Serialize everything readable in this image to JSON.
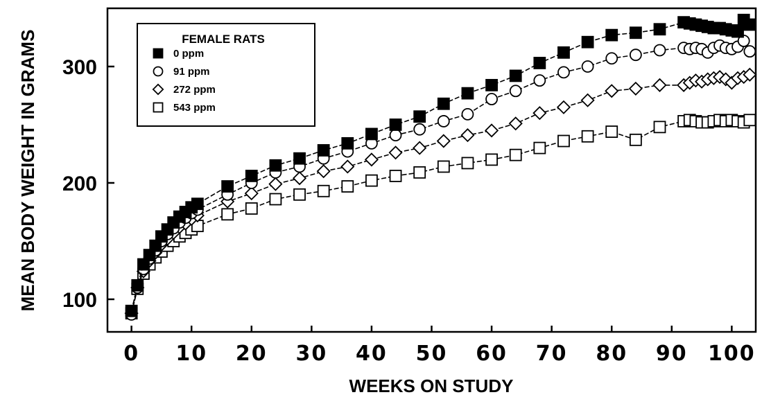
{
  "chart_data": {
    "type": "line",
    "xlabel": "WEEKS ON STUDY",
    "ylabel": "MEAN BODY WEIGHT IN GRAMS",
    "xlim": [
      -4,
      104
    ],
    "ylim": [
      72,
      350
    ],
    "x_ticks": [
      0,
      10,
      20,
      30,
      40,
      50,
      60,
      70,
      80,
      90,
      100
    ],
    "y_ticks": [
      100,
      200,
      300
    ],
    "legend": {
      "title": "FEMALE RATS",
      "position": "top-left"
    },
    "series": [
      {
        "name": "0 ppm",
        "marker": "filled-square",
        "x": [
          0,
          1,
          2,
          3,
          4,
          5,
          6,
          7,
          8,
          9,
          10,
          11,
          16,
          20,
          24,
          28,
          32,
          36,
          40,
          44,
          48,
          52,
          56,
          60,
          64,
          68,
          72,
          76,
          80,
          84,
          88,
          92,
          93,
          94,
          95,
          96,
          97,
          98,
          99,
          100,
          101,
          102,
          103
        ],
        "y": [
          90,
          112,
          130,
          138,
          146,
          154,
          160,
          166,
          171,
          175,
          179,
          182,
          197,
          206,
          215,
          221,
          228,
          234,
          242,
          250,
          257,
          268,
          277,
          284,
          292,
          303,
          312,
          321,
          327,
          329,
          332,
          338,
          337,
          336,
          335,
          334,
          333,
          333,
          332,
          331,
          330,
          340,
          336
        ]
      },
      {
        "name": "91 ppm",
        "marker": "open-circle",
        "x": [
          0,
          1,
          2,
          3,
          4,
          5,
          6,
          7,
          8,
          9,
          10,
          11,
          16,
          20,
          24,
          28,
          32,
          36,
          40,
          44,
          48,
          52,
          56,
          60,
          64,
          68,
          72,
          76,
          80,
          84,
          88,
          92,
          93,
          94,
          95,
          96,
          97,
          98,
          99,
          100,
          101,
          102,
          103
        ],
        "y": [
          87,
          110,
          126,
          135,
          142,
          150,
          156,
          161,
          166,
          170,
          174,
          177,
          190,
          200,
          209,
          214,
          221,
          227,
          234,
          241,
          246,
          253,
          259,
          272,
          279,
          288,
          295,
          300,
          307,
          310,
          314,
          316,
          315,
          316,
          315,
          312,
          316,
          318,
          316,
          315,
          317,
          322,
          313
        ]
      },
      {
        "name": "272 ppm",
        "marker": "open-diamond",
        "x": [
          0,
          1,
          2,
          3,
          4,
          5,
          6,
          7,
          8,
          9,
          10,
          11,
          16,
          20,
          24,
          28,
          32,
          36,
          40,
          44,
          48,
          52,
          56,
          60,
          64,
          68,
          72,
          76,
          80,
          84,
          88,
          92,
          93,
          94,
          95,
          96,
          97,
          98,
          99,
          100,
          101,
          102,
          103
        ],
        "y": [
          88,
          110,
          124,
          133,
          140,
          147,
          152,
          157,
          162,
          165,
          169,
          172,
          184,
          191,
          199,
          204,
          210,
          214,
          220,
          226,
          230,
          236,
          241,
          245,
          251,
          260,
          265,
          271,
          279,
          281,
          284,
          284,
          286,
          288,
          287,
          289,
          290,
          291,
          289,
          286,
          290,
          291,
          293
        ]
      },
      {
        "name": "543 ppm",
        "marker": "open-square",
        "x": [
          0,
          1,
          2,
          3,
          4,
          5,
          6,
          7,
          8,
          9,
          10,
          11,
          16,
          20,
          24,
          28,
          32,
          36,
          40,
          44,
          48,
          52,
          56,
          60,
          64,
          68,
          72,
          76,
          80,
          84,
          88,
          92,
          93,
          94,
          95,
          96,
          97,
          98,
          99,
          100,
          101,
          102,
          103
        ],
        "y": [
          88,
          109,
          122,
          130,
          136,
          141,
          146,
          150,
          154,
          157,
          160,
          163,
          173,
          178,
          186,
          190,
          193,
          197,
          202,
          206,
          209,
          214,
          217,
          220,
          224,
          230,
          236,
          240,
          244,
          237,
          248,
          253,
          254,
          253,
          252,
          252,
          253,
          254,
          253,
          254,
          253,
          252,
          254
        ]
      }
    ]
  }
}
